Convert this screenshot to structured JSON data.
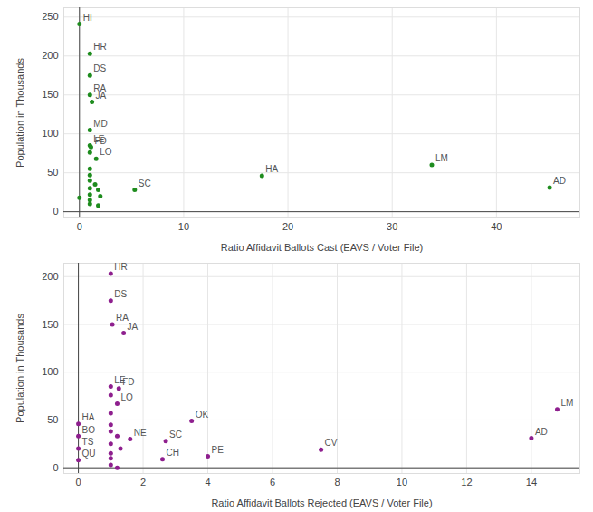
{
  "chart_data": [
    {
      "type": "scatter",
      "x_label": "Ratio Affidavit Ballots Cast (EAVS / Voter File)",
      "y_label": "Population in Thousands",
      "color": "#1e8c1e",
      "grid": true,
      "xlim": [
        -1.5,
        48
      ],
      "xticks": [
        0,
        10,
        20,
        30,
        40
      ],
      "ylim": [
        -8,
        262
      ],
      "yticks": [
        0,
        50,
        100,
        150,
        200,
        250
      ],
      "labels": [
        "HI",
        "HR",
        "DS",
        "RA",
        "JA",
        "MD",
        "LE",
        "FD",
        "LO",
        "SC",
        "HA",
        "LM",
        "AD",
        null,
        null,
        null,
        null,
        null,
        null,
        null,
        null,
        null,
        null,
        null,
        null,
        null
      ],
      "x": [
        0,
        1,
        1,
        1,
        1.2,
        1,
        1,
        1.1,
        1.6,
        5.3,
        17.5,
        33.8,
        45.1,
        1,
        1,
        1,
        1,
        1.5,
        1,
        1.8,
        1,
        2,
        1,
        1,
        1.8,
        0
      ],
      "values": [
        241,
        203,
        175,
        150,
        141,
        105,
        85,
        83,
        68,
        28,
        46,
        60,
        31,
        76,
        55,
        47,
        40,
        35,
        30,
        28,
        22,
        20,
        15,
        10,
        8,
        18
      ]
    },
    {
      "type": "scatter",
      "x_label": "Ratio Affidavit Ballots Rejected (EAVS / Voter File)",
      "y_label": "Population in Thousands",
      "color": "#8e1f8e",
      "grid": true,
      "xlim": [
        -0.45,
        15.5
      ],
      "xticks": [
        0,
        2,
        4,
        6,
        8,
        10,
        12,
        14
      ],
      "ylim": [
        -6,
        214
      ],
      "yticks": [
        0,
        50,
        100,
        150,
        200
      ],
      "labels": [
        "HR",
        "DS",
        "RA",
        "JA",
        "LE",
        "FD",
        "LO",
        "HA",
        "BO",
        "TS",
        "QU",
        "OK",
        "SC",
        "CH",
        "PE",
        "CV",
        "AD",
        "LM",
        "NE",
        null,
        null,
        null,
        null,
        null,
        null,
        null,
        null,
        null,
        null,
        null
      ],
      "x": [
        1,
        1,
        1.05,
        1.4,
        1,
        1.25,
        1.2,
        0,
        0,
        0,
        0,
        3.5,
        2.7,
        2.6,
        4,
        7.5,
        14,
        14.8,
        1.6,
        1,
        1,
        1,
        1,
        1.2,
        1,
        1.3,
        1,
        1,
        1,
        1.2
      ],
      "values": [
        203,
        175,
        150,
        141,
        85,
        83,
        67,
        46,
        33,
        20,
        8,
        49,
        28,
        9,
        12,
        19,
        31,
        61,
        30,
        76,
        57,
        45,
        38,
        33,
        25,
        20,
        15,
        10,
        3,
        0
      ]
    }
  ]
}
